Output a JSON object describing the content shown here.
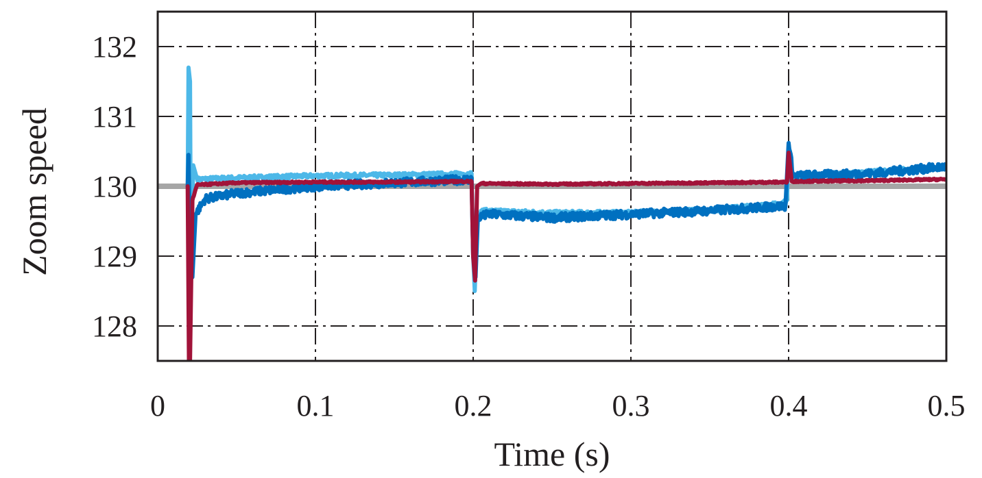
{
  "chart_data": {
    "type": "line",
    "title": "",
    "xlabel": "Time (s)",
    "ylabel": "Zoom speed",
    "xlim": [
      0,
      0.5
    ],
    "ylim": [
      127.5,
      132.5
    ],
    "xticks": [
      0,
      0.1,
      0.2,
      0.3,
      0.4,
      0.5
    ],
    "xtick_labels": [
      "0",
      "0.1",
      "0.2",
      "0.3",
      "0.4",
      "0.5"
    ],
    "yticks": [
      128,
      129,
      130,
      131,
      132
    ],
    "ytick_labels": [
      "128",
      "129",
      "130",
      "131",
      "132"
    ],
    "grid": true,
    "legend": "none",
    "series": [
      {
        "color": "#a6a6a6",
        "width": 8,
        "noise": 0,
        "points": [
          [
            0,
            130
          ],
          [
            0.5,
            130
          ]
        ]
      },
      {
        "color": "#4db8e8",
        "width": 6,
        "noise": 0.03,
        "points": [
          [
            0.019,
            130
          ],
          [
            0.0195,
            131.7
          ],
          [
            0.0205,
            131.5
          ],
          [
            0.021,
            128.9
          ],
          [
            0.0225,
            130.3
          ],
          [
            0.025,
            130.1
          ],
          [
            0.05,
            130.12
          ],
          [
            0.1,
            130.15
          ],
          [
            0.15,
            130.16
          ],
          [
            0.199,
            130.18
          ],
          [
            0.2,
            129.0
          ],
          [
            0.201,
            128.5
          ],
          [
            0.2025,
            129.5
          ],
          [
            0.205,
            129.65
          ],
          [
            0.25,
            129.62
          ],
          [
            0.3,
            129.62
          ],
          [
            0.35,
            129.66
          ],
          [
            0.395,
            129.75
          ],
          [
            0.399,
            129.8
          ],
          [
            0.4,
            130.6
          ],
          [
            0.402,
            130.15
          ],
          [
            0.45,
            130.2
          ],
          [
            0.5,
            130.28
          ]
        ]
      },
      {
        "color": "#0070c0",
        "width": 6,
        "noise": 0.06,
        "points": [
          [
            0.019,
            130
          ],
          [
            0.0195,
            130.45
          ],
          [
            0.0205,
            129.1
          ],
          [
            0.022,
            128.7
          ],
          [
            0.024,
            129.6
          ],
          [
            0.03,
            129.82
          ],
          [
            0.05,
            129.9
          ],
          [
            0.1,
            130.0
          ],
          [
            0.15,
            130.05
          ],
          [
            0.199,
            130.1
          ],
          [
            0.2,
            129.0
          ],
          [
            0.2015,
            128.7
          ],
          [
            0.203,
            129.55
          ],
          [
            0.21,
            129.6
          ],
          [
            0.25,
            129.55
          ],
          [
            0.3,
            129.6
          ],
          [
            0.35,
            129.65
          ],
          [
            0.398,
            129.72
          ],
          [
            0.4,
            130.62
          ],
          [
            0.403,
            130.15
          ],
          [
            0.45,
            130.18
          ],
          [
            0.5,
            130.28
          ]
        ]
      },
      {
        "color": "#a11339",
        "width": 6,
        "noise": 0.012,
        "points": [
          [
            0.019,
            130
          ],
          [
            0.0198,
            127.5
          ],
          [
            0.0205,
            127.5
          ],
          [
            0.022,
            129.8
          ],
          [
            0.025,
            130.02
          ],
          [
            0.05,
            130.05
          ],
          [
            0.1,
            130.06
          ],
          [
            0.15,
            130.06
          ],
          [
            0.199,
            130.07
          ],
          [
            0.2,
            129.0
          ],
          [
            0.2012,
            128.65
          ],
          [
            0.2025,
            130.0
          ],
          [
            0.205,
            130.04
          ],
          [
            0.25,
            130.03
          ],
          [
            0.3,
            130.04
          ],
          [
            0.35,
            130.05
          ],
          [
            0.399,
            130.06
          ],
          [
            0.4,
            130.48
          ],
          [
            0.402,
            130.07
          ],
          [
            0.45,
            130.08
          ],
          [
            0.5,
            130.1
          ]
        ]
      }
    ]
  }
}
